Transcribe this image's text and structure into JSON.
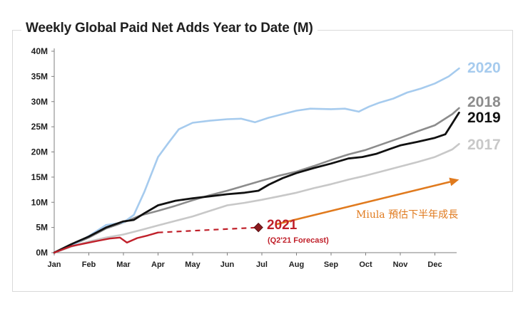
{
  "chart_data": {
    "type": "line",
    "title": "Weekly Global Paid Net Adds Year to Date (M)",
    "xlabel": "",
    "ylabel": "",
    "ylim": [
      0,
      40
    ],
    "xlim": [
      0,
      11.7
    ],
    "y_ticks": [
      {
        "value": 0,
        "label": "0M"
      },
      {
        "value": 5,
        "label": "5M"
      },
      {
        "value": 10,
        "label": "10M"
      },
      {
        "value": 15,
        "label": "15M"
      },
      {
        "value": 20,
        "label": "20M"
      },
      {
        "value": 25,
        "label": "25M"
      },
      {
        "value": 30,
        "label": "30M"
      },
      {
        "value": 35,
        "label": "35M"
      },
      {
        "value": 40,
        "label": "40M"
      }
    ],
    "x_ticks": [
      {
        "value": 0,
        "label": "Jan"
      },
      {
        "value": 1,
        "label": "Feb"
      },
      {
        "value": 2,
        "label": "Mar"
      },
      {
        "value": 3,
        "label": "Apr"
      },
      {
        "value": 4,
        "label": "May"
      },
      {
        "value": 5,
        "label": "Jun"
      },
      {
        "value": 6,
        "label": "Jul"
      },
      {
        "value": 7,
        "label": "Aug"
      },
      {
        "value": 8,
        "label": "Sep"
      },
      {
        "value": 9,
        "label": "Oct"
      },
      {
        "value": 10,
        "label": "Nov"
      },
      {
        "value": 11,
        "label": "Dec"
      }
    ],
    "series": [
      {
        "name": "2017",
        "label": "2017",
        "color": "#c8c8c8",
        "x": [
          0,
          0.5,
          1,
          1.5,
          2,
          2.5,
          3,
          3.5,
          4,
          4.5,
          5,
          5.5,
          6,
          6.5,
          7,
          7.5,
          8,
          8.5,
          9,
          9.5,
          10,
          10.5,
          11,
          11.5,
          11.7
        ],
        "values": [
          0,
          1.2,
          2.2,
          3.0,
          3.6,
          4.5,
          5.4,
          6.3,
          7.2,
          8.3,
          9.4,
          9.9,
          10.5,
          11.2,
          11.9,
          12.8,
          13.6,
          14.5,
          15.3,
          16.2,
          17.1,
          18.0,
          19.0,
          20.5,
          21.6
        ]
      },
      {
        "name": "2018",
        "label": "2018",
        "color": "#8c8c8c",
        "x": [
          0,
          0.5,
          1,
          1.5,
          2,
          2.5,
          3,
          3.5,
          4,
          4.5,
          5,
          5.5,
          6,
          6.5,
          7,
          7.5,
          8,
          8.5,
          9,
          9.5,
          10,
          10.5,
          11,
          11.5,
          11.7
        ],
        "values": [
          0,
          1.5,
          3.0,
          4.8,
          6.0,
          7.4,
          8.3,
          9.3,
          10.4,
          11.4,
          12.3,
          13.3,
          14.3,
          15.3,
          16.1,
          17.2,
          18.4,
          19.5,
          20.4,
          21.6,
          22.8,
          24.1,
          25.3,
          27.5,
          28.7
        ]
      },
      {
        "name": "2019",
        "label": "2019",
        "color": "#111111",
        "x": [
          0,
          0.5,
          1,
          1.5,
          2,
          2.3,
          2.6,
          3,
          3.5,
          4,
          4.5,
          5,
          5.5,
          5.9,
          6.2,
          6.6,
          7,
          7.5,
          8,
          8.5,
          8.9,
          9.3,
          9.7,
          10,
          10.5,
          11,
          11.3,
          11.7
        ],
        "values": [
          0,
          1.7,
          3.2,
          5.0,
          6.2,
          6.5,
          7.8,
          9.4,
          10.3,
          10.8,
          11.2,
          11.6,
          11.9,
          12.3,
          13.5,
          14.8,
          15.8,
          16.8,
          17.7,
          18.7,
          19.0,
          19.6,
          20.6,
          21.3,
          22.0,
          22.8,
          23.5,
          27.8
        ]
      },
      {
        "name": "2020",
        "label": "2020",
        "color": "#a6cbee",
        "x": [
          0,
          0.5,
          1,
          1.5,
          2,
          2.3,
          2.6,
          3,
          3.3,
          3.6,
          4,
          4.5,
          5,
          5.4,
          5.8,
          6.2,
          6.6,
          7,
          7.4,
          8,
          8.4,
          8.8,
          9.1,
          9.4,
          9.8,
          10.2,
          10.6,
          11,
          11.4,
          11.7
        ],
        "values": [
          0,
          1.4,
          3.3,
          5.5,
          6.0,
          7.5,
          12.0,
          19.0,
          21.8,
          24.5,
          25.8,
          26.2,
          26.5,
          26.6,
          25.9,
          26.8,
          27.5,
          28.2,
          28.6,
          28.5,
          28.6,
          28.0,
          29.0,
          29.8,
          30.6,
          31.8,
          32.6,
          33.6,
          35.0,
          36.6
        ]
      },
      {
        "name": "2021",
        "label": "2021",
        "color": "#c0202a",
        "x": [
          0,
          0.5,
          1,
          1.3,
          1.6,
          1.9,
          2.1,
          2.4,
          2.7,
          3.0
        ],
        "values": [
          0,
          1.3,
          2.0,
          2.4,
          2.8,
          3.0,
          2.0,
          2.9,
          3.4,
          4.0
        ]
      }
    ],
    "forecast": {
      "label_year": "2021",
      "label_sub": "(Q2'21 Forecast)",
      "color": "#c0202a",
      "start": {
        "x": 3.0,
        "y": 4.0
      },
      "point": {
        "x": 5.9,
        "y": 5.0
      }
    },
    "annotation": {
      "text": "Miula 預估下半年成長",
      "color": "#e07a1e",
      "arrow_from": {
        "x": 6.4,
        "y": 5.6
      },
      "arrow_to": {
        "x": 11.7,
        "y": 14.5
      }
    }
  }
}
